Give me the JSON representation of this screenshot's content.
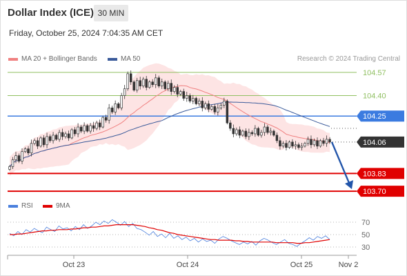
{
  "header": {
    "title": "Dollar Index (ICE)",
    "timeframe": "30 MIN",
    "datetime": "Friday, October 25, 2024 7:04:35 AM CET",
    "credit": "Research © 2024 Trading Central"
  },
  "colors": {
    "up": "#333333",
    "down": "#333333",
    "ma20": "#f08080",
    "ma50": "#3a5a9a",
    "band": "#fcd5d5",
    "resistance_green": "#8fbf60",
    "pivot_blue": "#3b7be0",
    "support_red": "#e00000",
    "arrow": "#2255aa",
    "rsi": "#4a7fdd",
    "rsi_ma": "#e00000"
  },
  "chart_data": [
    {
      "type": "candlestick",
      "title": "Dollar Index (ICE)",
      "legend": [
        {
          "name": "MA 20 + Bollinger Bands",
          "color": "#f08080"
        },
        {
          "name": "MA 50",
          "color": "#3a5a9a"
        }
      ],
      "y_ticks": [
        104.57,
        104.4,
        104.25,
        104.06,
        103.83,
        103.7
      ],
      "levels": [
        {
          "value": 104.57,
          "label": "104.57",
          "color": "#8fbf60",
          "kind": "resistance"
        },
        {
          "value": 104.4,
          "label": "104.40",
          "color": "#8fbf60",
          "kind": "resistance"
        },
        {
          "value": 104.25,
          "label": "104.25",
          "color": "#3b7be0",
          "kind": "pivot"
        },
        {
          "value": 104.06,
          "label": "104.06",
          "color": "#333333",
          "kind": "last"
        },
        {
          "value": 103.83,
          "label": "103.83",
          "color": "#e00000",
          "kind": "support"
        },
        {
          "value": 103.7,
          "label": "103.70",
          "color": "#e00000",
          "kind": "support"
        }
      ],
      "x_ticks": [
        "Oct 23",
        "Oct 24",
        "Oct 25",
        "Nov 2"
      ],
      "ylim": [
        103.66,
        104.62
      ],
      "close": [
        103.88,
        103.93,
        103.96,
        103.92,
        103.99,
        104.01,
        103.98,
        104.05,
        104.07,
        104.03,
        104.09,
        104.04,
        104.1,
        104.07,
        104.11,
        104.08,
        104.13,
        104.1,
        104.12,
        104.09,
        104.15,
        104.12,
        104.17,
        104.14,
        104.18,
        104.14,
        104.18,
        104.16,
        104.2,
        104.17,
        104.24,
        104.22,
        104.31,
        104.28,
        104.34,
        104.31,
        104.4,
        104.45,
        104.56,
        104.5,
        104.44,
        104.51,
        104.47,
        104.52,
        104.46,
        104.5,
        104.48,
        104.53,
        104.47,
        104.5,
        104.45,
        104.49,
        104.43,
        104.46,
        104.41,
        104.43,
        104.38,
        104.4,
        104.36,
        104.38,
        104.34,
        104.36,
        104.31,
        104.34,
        104.3,
        104.32,
        104.28,
        104.31,
        104.33,
        104.36,
        104.2,
        104.16,
        104.12,
        104.15,
        104.11,
        104.14,
        104.1,
        104.13,
        104.12,
        104.16,
        104.11,
        104.13,
        104.17,
        104.13,
        104.14,
        104.11,
        104.07,
        104.03,
        104.05,
        104.02,
        104.06,
        104.03,
        104.04,
        104.02,
        104.03,
        104.05,
        104.08,
        104.04,
        104.07,
        104.03,
        104.07,
        104.05,
        104.08,
        104.06
      ]
    },
    {
      "type": "line",
      "title": "RSI",
      "legend": [
        {
          "name": "RSI",
          "color": "#4a7fdd"
        },
        {
          "name": "9MA",
          "color": "#e00000"
        }
      ],
      "y_ticks": [
        70,
        50,
        30
      ],
      "ylim": [
        20,
        80
      ],
      "series": [
        {
          "name": "RSI",
          "values": [
            52,
            48,
            55,
            50,
            58,
            54,
            60,
            56,
            53,
            62,
            58,
            55,
            64,
            59,
            61,
            56,
            63,
            58,
            66,
            60,
            64,
            70,
            66,
            72,
            68,
            74,
            70,
            65,
            71,
            63,
            68,
            60,
            58,
            54,
            49,
            55,
            47,
            51,
            45,
            52,
            44,
            48,
            42,
            46,
            40,
            44,
            38,
            43,
            39,
            41,
            36,
            43,
            47,
            44,
            40,
            37,
            34,
            38,
            35,
            39,
            33,
            40,
            44,
            41,
            37,
            34,
            38,
            42,
            36,
            34,
            31,
            36,
            40,
            45,
            41,
            47,
            44,
            48,
            42
          ]
        },
        {
          "name": "9MA",
          "values": [
            50,
            50,
            51,
            51,
            52,
            53,
            54,
            55,
            56,
            56,
            57,
            57,
            58,
            58,
            58,
            59,
            59,
            60,
            61,
            61,
            62,
            62,
            63,
            64,
            64,
            65,
            66,
            66,
            66,
            66,
            66,
            65,
            64,
            63,
            61,
            60,
            58,
            57,
            55,
            53,
            52,
            50,
            49,
            48,
            47,
            46,
            45,
            44,
            43,
            42,
            42,
            41,
            41,
            41,
            41,
            40,
            40,
            39,
            39,
            38,
            38,
            38,
            38,
            38,
            38,
            37,
            37,
            37,
            37,
            37,
            36,
            36,
            37,
            37,
            38,
            39,
            40,
            41,
            42
          ]
        }
      ]
    }
  ]
}
